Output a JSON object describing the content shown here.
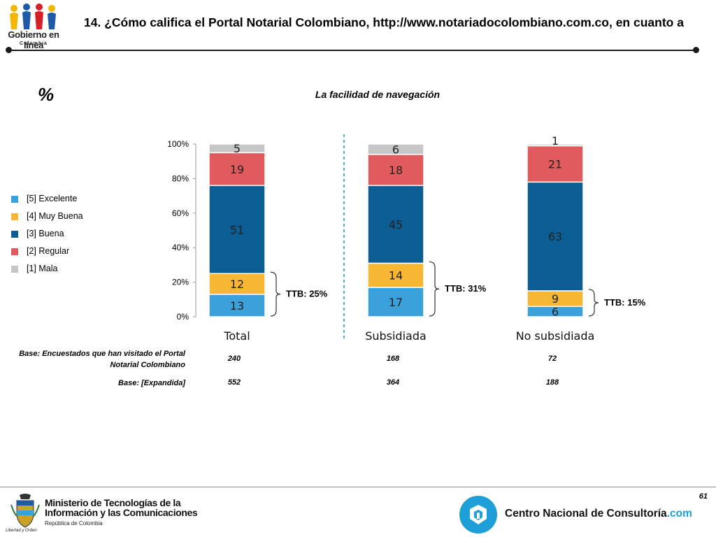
{
  "header": {
    "title": "14. ¿Cómo califica el Portal Notarial Colombiano, http://www.notariadocolombiano.com.co, en cuanto a",
    "logo": {
      "name": "Gobierno en línea",
      "sub": "Colombia"
    }
  },
  "percent_symbol": "%",
  "legend": {
    "items": [
      {
        "label": "[5] Excelente",
        "color": "#3ba1db"
      },
      {
        "label": "[4] Muy Buena",
        "color": "#f7b733"
      },
      {
        "label": "[3] Buena",
        "color": "#0b5e93"
      },
      {
        "label": "[2] Regular",
        "color": "#e15b5e"
      },
      {
        "label": "[1] Mala",
        "color": "#c6c6c6"
      }
    ]
  },
  "chart_data": {
    "type": "bar",
    "stacked": true,
    "title": "La facilidad de navegación",
    "categories": [
      "Total",
      "Subsidiada",
      "No subsidiada"
    ],
    "ylim": [
      0,
      100
    ],
    "yticks": [
      "0%",
      "20%",
      "40%",
      "60%",
      "80%",
      "100%"
    ],
    "series": [
      {
        "name": "[5] Excelente",
        "color": "#3ba1db",
        "values": [
          13,
          17,
          6
        ]
      },
      {
        "name": "[4] Muy Buena",
        "color": "#f7b733",
        "values": [
          12,
          14,
          9
        ]
      },
      {
        "name": "[3] Buena",
        "color": "#0b5e93",
        "values": [
          51,
          45,
          63
        ]
      },
      {
        "name": "[2] Regular",
        "color": "#e15b5e",
        "values": [
          19,
          18,
          21
        ]
      },
      {
        "name": "[1] Mala",
        "color": "#c6c6c6",
        "values": [
          5,
          6,
          1
        ]
      }
    ],
    "ttb_labels": [
      "TTB: 25%",
      "TTB: 31%",
      "TTB: 15%"
    ],
    "ttb_values": [
      25,
      31,
      15
    ],
    "separator_after": "Total"
  },
  "bases": {
    "rows": [
      {
        "label": "Base: Encuestados que han visitado el Portal Notarial Colombiano",
        "values": [
          "240",
          "168",
          "72"
        ]
      },
      {
        "label": "Base: [Expandida]",
        "values": [
          "552",
          "364",
          "188"
        ]
      }
    ]
  },
  "footer": {
    "page_number": "61",
    "ministry_line1": "Ministerio de Tecnologías de la",
    "ministry_line2": "Información y las Comunicaciones",
    "ministry_sub": "República de Colombia",
    "motto": "Libertad y Orden",
    "cnc_name": "Centro Nacional de Consultoría",
    "cnc_suffix": ".com"
  }
}
